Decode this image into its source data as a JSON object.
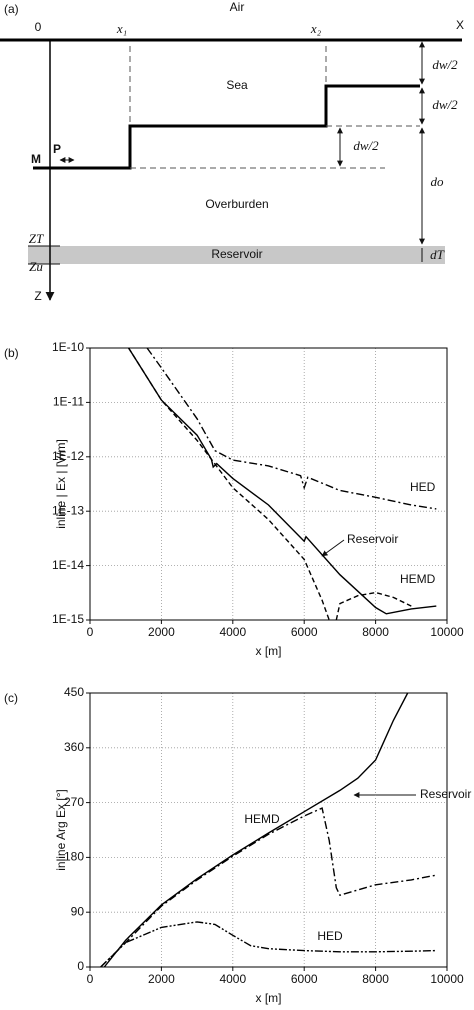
{
  "diagram": {
    "label": "(a)",
    "air": "Air",
    "origin": "0",
    "x_axis": "X",
    "z_axis": "Z",
    "x1": "x₁",
    "x2": "x₂",
    "sea": "Sea",
    "dw1": "dw/2",
    "dw2": "dw/2",
    "dw3": "dw/2",
    "m": "M",
    "p": "P",
    "do": "do",
    "overburden": "Overburden",
    "zt": "ZT",
    "zu": "Zu",
    "reservoir": "Reservoir",
    "dt": "dT"
  },
  "chart_data": [
    {
      "type": "line",
      "panel_label": "(b)",
      "xlabel": "x  [m]",
      "ylabel": "inline | Ex | [V/m]",
      "log_y": true,
      "grid": true,
      "xlim": [
        0,
        10000
      ],
      "xticks": [
        0,
        2000,
        4000,
        6000,
        8000,
        10000
      ],
      "ylim": [
        1e-15,
        1e-10
      ],
      "yticks": [
        {
          "value": 1e-15,
          "label": "1E-15"
        },
        {
          "value": 1e-14,
          "label": "1E-14"
        },
        {
          "value": 1e-13,
          "label": "1E-13"
        },
        {
          "value": 1e-12,
          "label": "1E-12"
        },
        {
          "value": 1e-11,
          "label": "1E-11"
        },
        {
          "value": 1e-10,
          "label": "1E-10"
        }
      ],
      "series": [
        {
          "name": "Reservoir",
          "color": "#000000",
          "dash": "solid",
          "x": [
            1080,
            2000,
            3000,
            3400,
            3450,
            3550,
            4000,
            5000,
            6000,
            6050,
            7000,
            8000,
            8300,
            9000,
            9700
          ],
          "values": [
            1e-10,
            1.1e-11,
            2.5e-12,
            9e-13,
            6.5e-13,
            7.5e-13,
            4e-13,
            1.3e-13,
            2.8e-14,
            3.4e-14,
            6.8e-15,
            1.7e-15,
            1.3e-15,
            1.6e-15,
            1.8e-15
          ]
        },
        {
          "name": "HED",
          "color": "#000000",
          "dash": "dashdot",
          "x": [
            1600,
            2000,
            3000,
            3500,
            4000,
            5000,
            5900,
            6000,
            6100,
            7000,
            8000,
            9000,
            9700
          ],
          "values": [
            1e-10,
            4.3e-11,
            5e-12,
            1.3e-12,
            8.7e-13,
            6.8e-13,
            4.5e-13,
            2.7e-13,
            4.2e-13,
            2.4e-13,
            1.8e-13,
            1.3e-13,
            1.1e-13
          ]
        },
        {
          "name": "HEMD",
          "color": "#000000",
          "dash": "dashed",
          "x": [
            1080,
            2000,
            3000,
            4000,
            5000,
            6000,
            6500,
            6700,
            6800,
            6900,
            7000,
            7500,
            8000,
            8500,
            9000
          ],
          "values": [
            1e-10,
            1.1e-11,
            2e-12,
            2.7e-13,
            7e-14,
            1.3e-14,
            2.3e-15,
            1e-15,
            null,
            1e-15,
            2e-15,
            2.8e-15,
            3.2e-15,
            2.6e-15,
            1.8e-15
          ]
        }
      ]
    },
    {
      "type": "line",
      "panel_label": "(c)",
      "xlabel": "x  [m]",
      "ylabel": "inline Arg Ex [°]",
      "log_y": false,
      "grid": true,
      "xlim": [
        0,
        10000
      ],
      "xticks": [
        0,
        2000,
        4000,
        6000,
        8000,
        10000
      ],
      "ylim": [
        0,
        450
      ],
      "yticks": [
        0,
        90,
        180,
        270,
        360,
        450
      ],
      "series": [
        {
          "name": "Reservoir",
          "color": "#000000",
          "dash": "solid",
          "x": [
            400,
            1000,
            2000,
            3000,
            4000,
            5000,
            6000,
            7000,
            7500,
            8000,
            8500,
            8900
          ],
          "values": [
            0,
            44,
            102,
            145,
            184,
            220,
            255,
            290,
            310,
            340,
            405,
            450
          ]
        },
        {
          "name": "HEMD",
          "color": "#000000",
          "dash": "dashdot",
          "x": [
            300,
            1000,
            2000,
            3000,
            4000,
            5000,
            6000,
            6500,
            6700,
            6900,
            7000,
            8000,
            9000,
            9700
          ],
          "values": [
            0,
            40,
            100,
            143,
            182,
            218,
            248,
            261,
            208,
            130,
            118,
            135,
            143,
            151
          ]
        },
        {
          "name": "HED",
          "color": "#000000",
          "dash": "dashdotdot",
          "x": [
            300,
            1000,
            2000,
            3000,
            3500,
            4000,
            4500,
            5000,
            6000,
            7000,
            8000,
            9000,
            9700
          ],
          "values": [
            0,
            40,
            65,
            74,
            70,
            52,
            35,
            30,
            27,
            25,
            25,
            26,
            27
          ]
        }
      ]
    }
  ]
}
